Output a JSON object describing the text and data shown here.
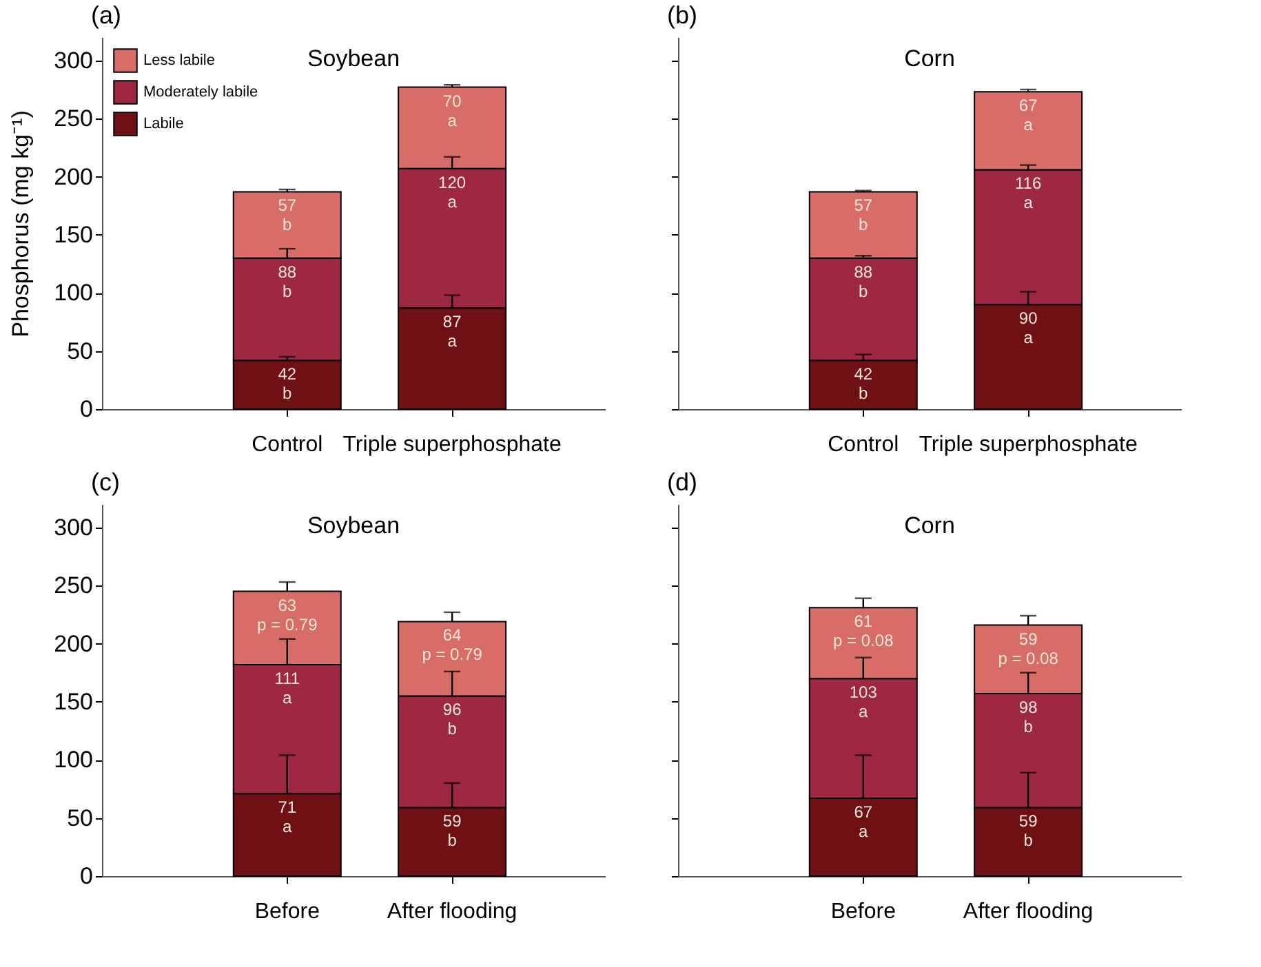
{
  "chart_data": [
    {
      "type": "bar",
      "stacked": true,
      "title": "Soybean",
      "annotations": [
        "(a)"
      ],
      "ylabel": "Phosphorus (mg kg⁻¹)",
      "categories": [
        "Control",
        "Triple superphosphate"
      ],
      "ylim": [
        0,
        320
      ],
      "yticks": [
        0,
        50,
        100,
        150,
        200,
        250,
        300
      ],
      "legend": "top left",
      "series": [
        {
          "name": "Labile",
          "color": "#6f1014",
          "values": [
            42,
            87
          ],
          "errors": [
            [
              42,
              45
            ],
            [
              87,
              98
            ]
          ],
          "value_labels": [
            "42\nb",
            "87\na"
          ]
        },
        {
          "name": "Moderately labile",
          "color": "#9e2841",
          "values": [
            88,
            120
          ],
          "errors": [
            [
              130,
              138
            ],
            [
              207,
              217
            ]
          ],
          "value_labels": [
            "88\nb",
            "120\na"
          ]
        },
        {
          "name": "Less labile",
          "color": "#d76d66",
          "values": [
            57,
            70
          ],
          "errors": [
            [
              187,
              189
            ],
            [
              277,
              279
            ]
          ],
          "value_labels": [
            "57\nb",
            "70\na"
          ]
        }
      ]
    },
    {
      "type": "bar",
      "stacked": true,
      "title": "Corn",
      "annotations": [
        "(b)"
      ],
      "categories": [
        "Control",
        "Triple superphosphate"
      ],
      "ylim": [
        0,
        320
      ],
      "yticks": [
        0,
        50,
        100,
        150,
        200,
        250,
        300
      ],
      "tick_labels": "x",
      "series": [
        {
          "color": "#6f1014",
          "values": [
            42,
            90
          ],
          "errors": [
            [
              42,
              47
            ],
            [
              90,
              101
            ]
          ],
          "value_labels": [
            "42\nb",
            "90\na"
          ]
        },
        {
          "color": "#9e2841",
          "values": [
            88,
            116
          ],
          "errors": [
            [
              130,
              132
            ],
            [
              206,
              210
            ]
          ],
          "value_labels": [
            "88\nb",
            "116\na"
          ]
        },
        {
          "color": "#d76d66",
          "values": [
            57,
            67
          ],
          "errors": [
            [
              187,
              188
            ],
            [
              273,
              275
            ]
          ],
          "value_labels": [
            "57\nb",
            "67\na"
          ]
        }
      ]
    },
    {
      "type": "bar",
      "stacked": true,
      "title": "Soybean",
      "annotations": [
        "(c)"
      ],
      "categories": [
        "Before",
        "After flooding"
      ],
      "ylim": [
        0,
        320
      ],
      "yticks": [
        0,
        50,
        100,
        150,
        200,
        250,
        300
      ],
      "series": [
        {
          "color": "#6f1014",
          "values": [
            71,
            59
          ],
          "errors": [
            [
              71,
              104
            ],
            [
              59,
              80
            ]
          ],
          "value_labels": [
            "71\na",
            "59\nb"
          ]
        },
        {
          "color": "#9e2841",
          "values": [
            111,
            96
          ],
          "errors": [
            [
              182,
              204
            ],
            [
              155,
              176
            ]
          ],
          "value_labels": [
            "111\na",
            "96\nb"
          ]
        },
        {
          "color": "#d76d66",
          "values": [
            63,
            64
          ],
          "errors": [
            [
              245,
              253
            ],
            [
              219,
              227
            ]
          ],
          "value_labels": [
            "63\np = 0.79",
            "64\np = 0.79"
          ]
        }
      ]
    },
    {
      "type": "bar",
      "stacked": true,
      "title": "Corn",
      "annotations": [
        "(d)"
      ],
      "categories": [
        "Before",
        "After flooding"
      ],
      "ylim": [
        0,
        320
      ],
      "yticks": [
        0,
        50,
        100,
        150,
        200,
        250,
        300
      ],
      "tick_labels": "x",
      "series": [
        {
          "color": "#6f1014",
          "values": [
            67,
            59
          ],
          "errors": [
            [
              67,
              104
            ],
            [
              59,
              89
            ]
          ],
          "value_labels": [
            "67\na",
            "59\nb"
          ]
        },
        {
          "color": "#9e2841",
          "values": [
            103,
            98
          ],
          "errors": [
            [
              170,
              188
            ],
            [
              157,
              175
            ]
          ],
          "value_labels": [
            "103\na",
            "98\nb"
          ]
        },
        {
          "color": "#d76d66",
          "values": [
            61,
            59
          ],
          "errors": [
            [
              231,
              239
            ],
            [
              216,
              224
            ]
          ],
          "value_labels": [
            "61\np = 0.08",
            "59\np = 0.08"
          ]
        }
      ]
    }
  ]
}
